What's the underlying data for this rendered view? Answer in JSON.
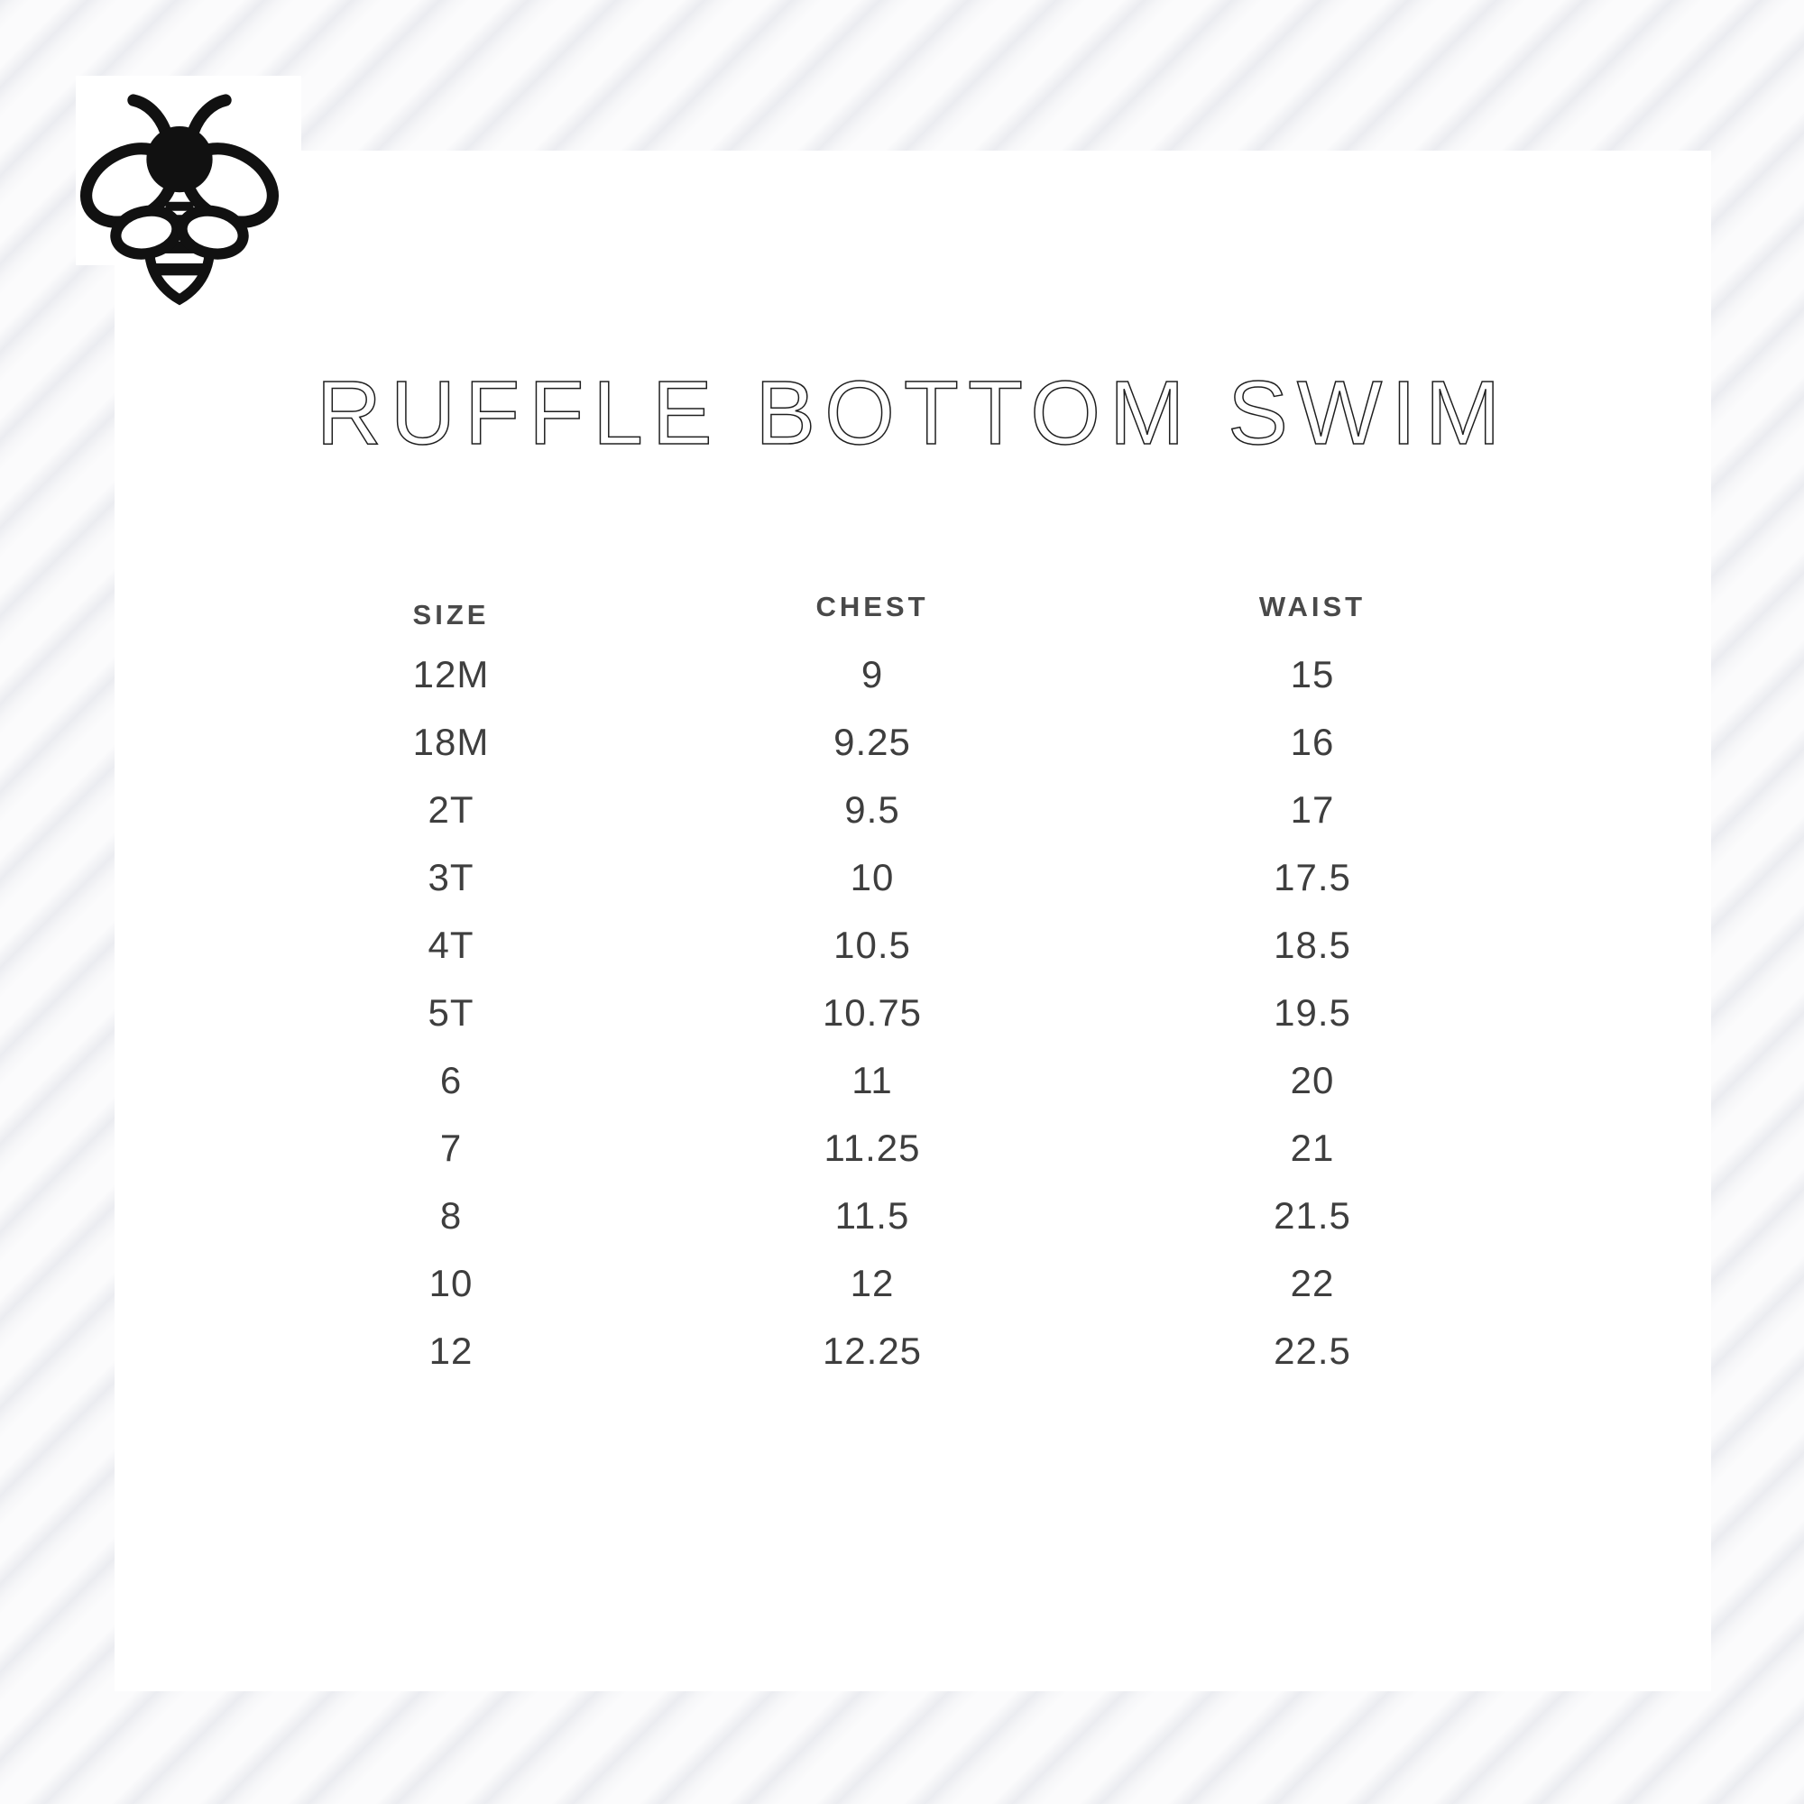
{
  "logo": {
    "icon": "bee-icon"
  },
  "title": "RUFFLE BOTTOM SWIM",
  "chart_data": {
    "type": "table",
    "title": "RUFFLE BOTTOM SWIM",
    "columns": [
      "SIZE",
      "CHEST",
      "WAIST"
    ],
    "rows": [
      [
        "12M",
        "9",
        "15"
      ],
      [
        "18M",
        "9.25",
        "16"
      ],
      [
        "2T",
        "9.5",
        "17"
      ],
      [
        "3T",
        "10",
        "17.5"
      ],
      [
        "4T",
        "10.5",
        "18.5"
      ],
      [
        "5T",
        "10.75",
        "19.5"
      ],
      [
        "6",
        "11",
        "20"
      ],
      [
        "7",
        "11.25",
        "21"
      ],
      [
        "8",
        "11.5",
        "21.5"
      ],
      [
        "10",
        "12",
        "22"
      ],
      [
        "12",
        "12.25",
        "22.5"
      ]
    ],
    "layout": {
      "legend": "none",
      "grid": "off",
      "column_alignment": "center"
    }
  },
  "colors": {
    "card_bg": "#ffffff",
    "background": "#fbfbfc",
    "stripe": "#dee0e7",
    "title_text": "#1f1f1f",
    "header_text": "#494949",
    "cell_text": "#3e3e3e",
    "bee": "#111111"
  }
}
